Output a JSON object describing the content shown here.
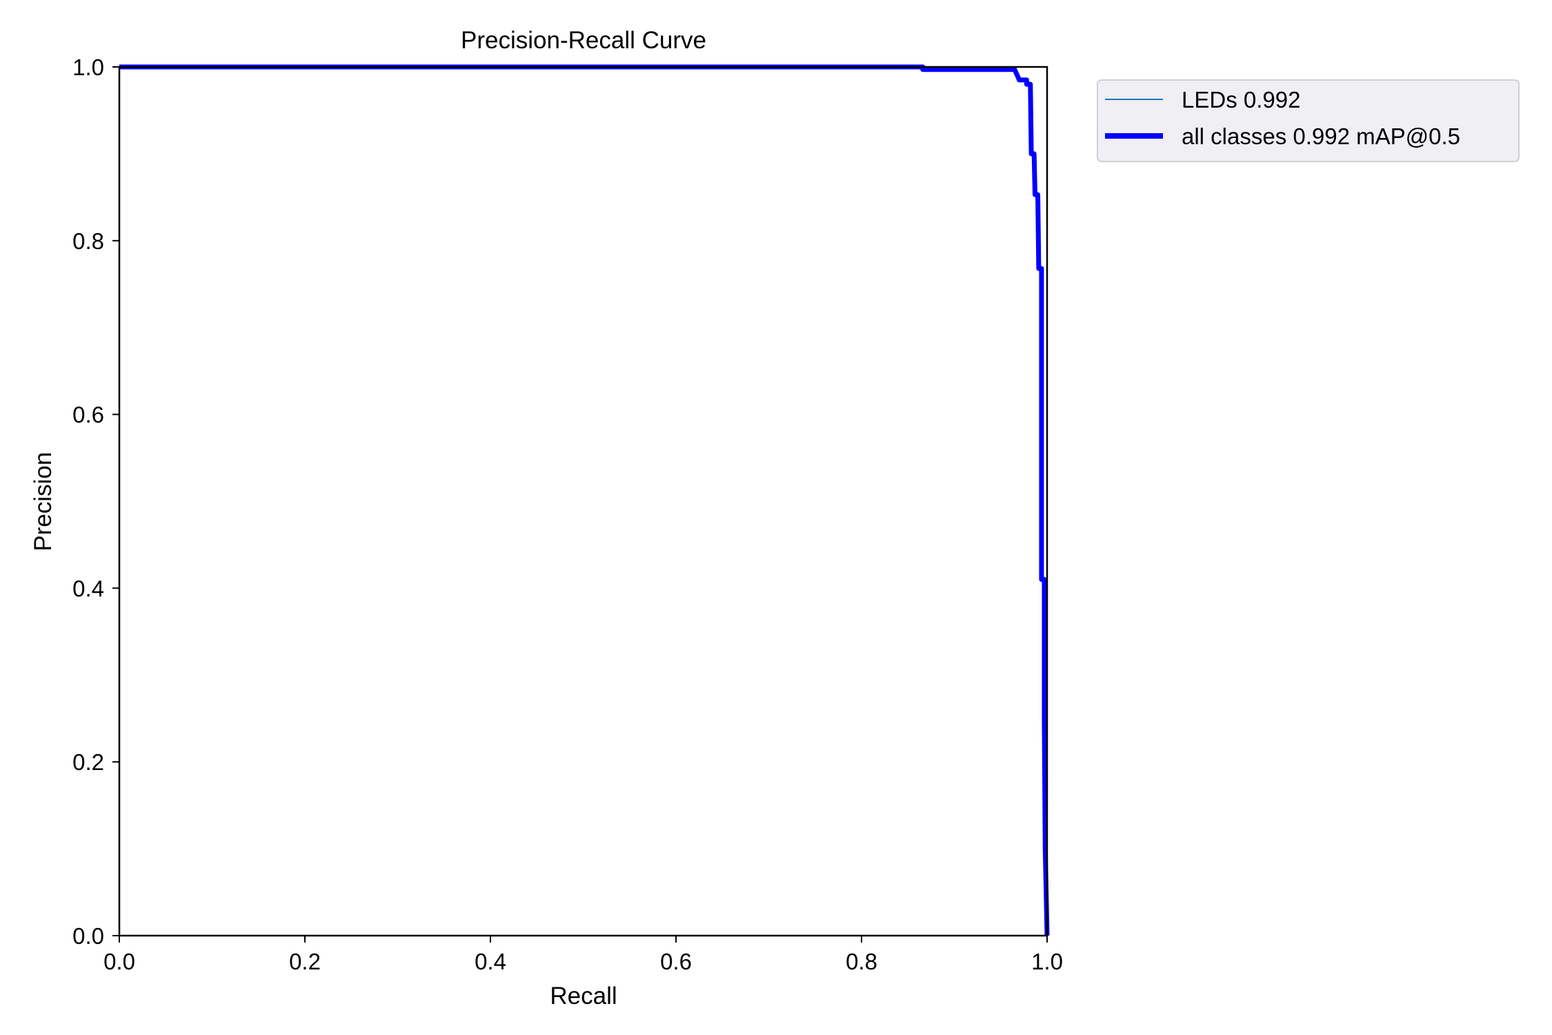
{
  "chart_data": {
    "type": "line",
    "title": "Precision-Recall Curve",
    "xlabel": "Recall",
    "ylabel": "Precision",
    "xlim": [
      0,
      1
    ],
    "ylim": [
      0,
      1
    ],
    "xticks": [
      "0.0",
      "0.2",
      "0.4",
      "0.6",
      "0.8",
      "1.0"
    ],
    "yticks": [
      "0.0",
      "0.2",
      "0.4",
      "0.6",
      "0.8",
      "1.0"
    ],
    "grid": false,
    "legend_position": "outside-top-right",
    "series": [
      {
        "name": "LEDs 0.992",
        "color": "#1f77b4",
        "style": "thin",
        "points": [
          [
            0,
            1
          ],
          [
            0.866,
            1
          ],
          [
            0.866,
            0.997
          ],
          [
            0.965,
            0.997
          ],
          [
            0.968,
            0.99
          ],
          [
            0.97,
            0.985
          ],
          [
            0.978,
            0.985
          ],
          [
            0.978,
            0.98
          ],
          [
            0.982,
            0.98
          ],
          [
            0.983,
            0.9
          ],
          [
            0.986,
            0.9
          ],
          [
            0.987,
            0.853
          ],
          [
            0.99,
            0.853
          ],
          [
            0.991,
            0.768
          ],
          [
            0.994,
            0.768
          ],
          [
            0.994,
            0.41
          ],
          [
            0.997,
            0.41
          ],
          [
            0.997,
            0.25
          ],
          [
            0.998,
            0.1
          ],
          [
            1,
            0
          ]
        ]
      },
      {
        "name": "all classes 0.992 mAP@0.5",
        "color": "#0000ff",
        "style": "thick",
        "points": [
          [
            0,
            1
          ],
          [
            0.866,
            1
          ],
          [
            0.866,
            0.997
          ],
          [
            0.965,
            0.997
          ],
          [
            0.968,
            0.99
          ],
          [
            0.97,
            0.985
          ],
          [
            0.978,
            0.985
          ],
          [
            0.978,
            0.98
          ],
          [
            0.982,
            0.98
          ],
          [
            0.983,
            0.9
          ],
          [
            0.986,
            0.9
          ],
          [
            0.987,
            0.853
          ],
          [
            0.99,
            0.853
          ],
          [
            0.991,
            0.768
          ],
          [
            0.994,
            0.768
          ],
          [
            0.994,
            0.41
          ],
          [
            0.997,
            0.41
          ],
          [
            0.997,
            0.25
          ],
          [
            0.998,
            0.1
          ],
          [
            1,
            0
          ]
        ]
      }
    ]
  }
}
